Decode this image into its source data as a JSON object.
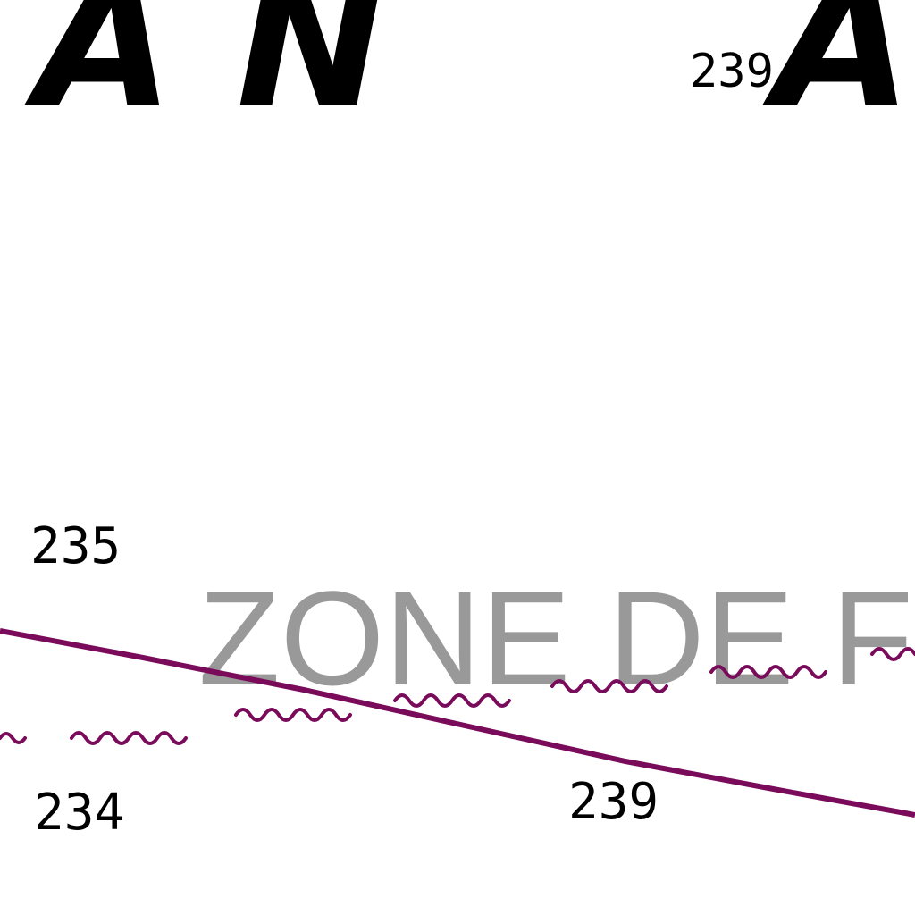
{
  "map": {
    "colors": {
      "background": "#ffffff",
      "text": "#000000",
      "zone_text": "#999999",
      "boundary_line": "#7a0a5a",
      "wavy_line": "#7a0a5a"
    },
    "labels": {
      "region_left": "A N",
      "region_right": "A",
      "zone": "ZONE DE F"
    },
    "soundings": {
      "top_right": "239",
      "left_upper": "235",
      "left_lower": "234",
      "bottom_center": "239"
    }
  }
}
